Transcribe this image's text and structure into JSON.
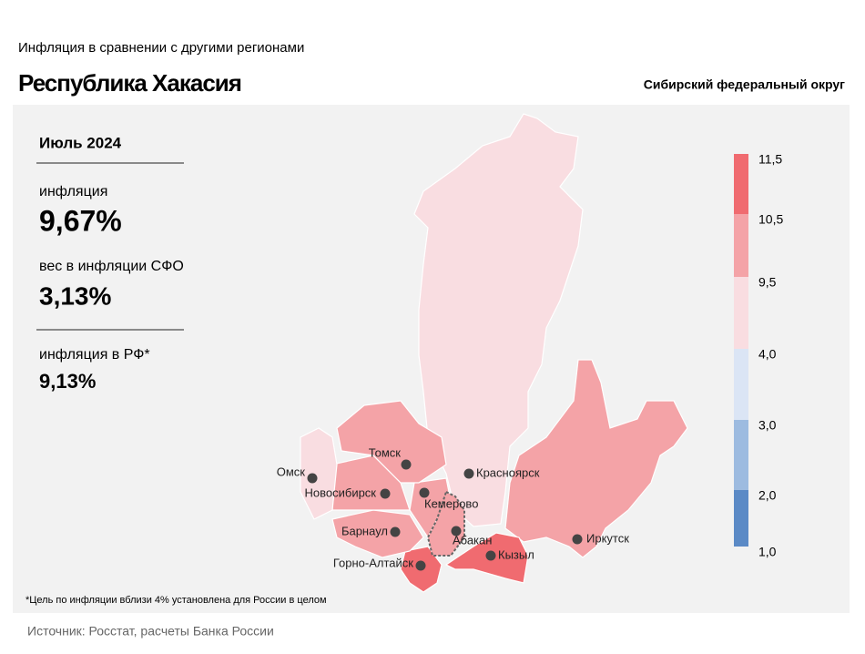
{
  "header": {
    "subtitle": "Инфляция в сравнении с другими регионами",
    "title": "Республика Хакасия",
    "district": "Сибирский федеральный округ"
  },
  "stats": {
    "period": "Июль 2024",
    "inflation_label": "инфляция",
    "inflation_value": "9,67%",
    "weight_label": "вес в инфляции СФО",
    "weight_value": "3,13%",
    "rf_label": "инфляция в РФ*",
    "rf_value": "9,13%"
  },
  "legend": {
    "ticks": [
      {
        "value": 1.0,
        "label": "1,0"
      },
      {
        "value": 2.0,
        "label": "2,0"
      },
      {
        "value": 3.0,
        "label": "3,0"
      },
      {
        "value": 4.0,
        "label": "4,0"
      },
      {
        "value": 9.5,
        "label": "9,5"
      },
      {
        "value": 10.5,
        "label": "10,5"
      },
      {
        "value": 11.5,
        "label": "11,5"
      }
    ],
    "colors": [
      "#5b8ac6",
      "#9dbbe0",
      "#dbe5f5",
      "#f9dde1",
      "#f4a3a7",
      "#f06b70"
    ]
  },
  "cities": [
    "Томск",
    "Омск",
    "Новосибирск",
    "Кемерово",
    "Красноярск",
    "Барнаул",
    "Абакан",
    "Горно-Алтайск",
    "Кызыл",
    "Иркутск"
  ],
  "footnote": "*Цель по инфляции вблизи 4% установлена для России в целом",
  "source": "Источник: Росстат, расчеты Банка России"
}
